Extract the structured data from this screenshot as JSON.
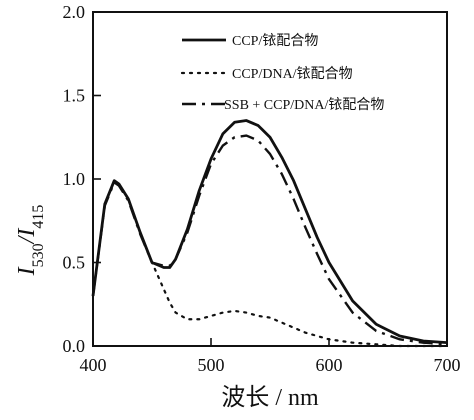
{
  "chart_data": {
    "type": "line",
    "xlabel": "波长 / nm",
    "ylabel_main": "I",
    "ylabel_sub1": "530",
    "ylabel_mid": "/I",
    "ylabel_sub2": "415",
    "xlim": [
      400,
      700
    ],
    "ylim": [
      0,
      2.0
    ],
    "x_ticks": [
      400,
      500,
      600,
      700
    ],
    "x_tick_labels": [
      "400",
      "500",
      "600",
      "700"
    ],
    "y_ticks": [
      0,
      0.5,
      1.0,
      1.5,
      2.0
    ],
    "y_tick_labels": [
      "0.0",
      "0.5",
      "1.0",
      "1.5",
      "2.0"
    ],
    "legend_position": "top-right",
    "grid": false,
    "series": [
      {
        "name": "CCP/铱配合物",
        "style": "solid",
        "x": [
          400,
          410,
          418,
          422,
          430,
          440,
          450,
          460,
          465,
          470,
          480,
          490,
          500,
          510,
          520,
          530,
          540,
          550,
          560,
          570,
          580,
          590,
          600,
          620,
          640,
          660,
          680,
          700
        ],
        "y": [
          0.3,
          0.85,
          0.99,
          0.97,
          0.88,
          0.68,
          0.5,
          0.47,
          0.47,
          0.52,
          0.7,
          0.93,
          1.12,
          1.27,
          1.34,
          1.35,
          1.32,
          1.25,
          1.13,
          0.99,
          0.82,
          0.65,
          0.5,
          0.27,
          0.13,
          0.06,
          0.03,
          0.02
        ]
      },
      {
        "name": "CCP/DNA/铱配合物",
        "style": "dotted",
        "x": [
          400,
          410,
          418,
          422,
          430,
          440,
          450,
          460,
          465,
          470,
          480,
          490,
          500,
          510,
          520,
          530,
          540,
          550,
          560,
          570,
          580,
          590,
          600,
          620,
          640,
          660,
          680,
          700
        ],
        "y": [
          0.3,
          0.85,
          0.99,
          0.97,
          0.88,
          0.68,
          0.5,
          0.34,
          0.26,
          0.2,
          0.16,
          0.16,
          0.18,
          0.2,
          0.21,
          0.2,
          0.18,
          0.17,
          0.14,
          0.11,
          0.08,
          0.06,
          0.04,
          0.02,
          0.01,
          0.0,
          0.0,
          0.0
        ]
      },
      {
        "name": "SSB + CCP/DNA/铱配合物",
        "style": "dashdot",
        "x": [
          400,
          410,
          418,
          422,
          430,
          440,
          450,
          460,
          465,
          470,
          480,
          490,
          500,
          510,
          520,
          530,
          540,
          550,
          560,
          570,
          580,
          590,
          600,
          620,
          640,
          660,
          680,
          700
        ],
        "y": [
          0.3,
          0.84,
          0.98,
          0.96,
          0.87,
          0.67,
          0.5,
          0.48,
          0.48,
          0.52,
          0.68,
          0.9,
          1.09,
          1.2,
          1.25,
          1.26,
          1.23,
          1.15,
          1.03,
          0.88,
          0.71,
          0.55,
          0.4,
          0.2,
          0.09,
          0.04,
          0.02,
          0.01
        ]
      }
    ]
  }
}
